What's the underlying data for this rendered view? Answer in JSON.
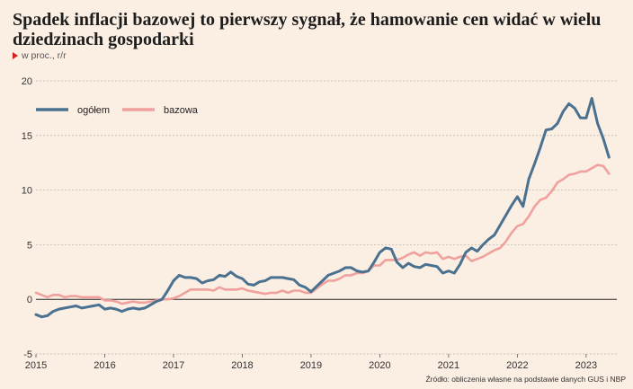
{
  "header": {
    "title": "Spadek inflacji bazowej to pierwszy sygnał, że hamowanie cen widać w wielu dziedzinach gospodarki",
    "subtitle": "w proc., r/r"
  },
  "source": "Źródło: obliczenia własne na podstawie danych GUS i NBP",
  "colors": {
    "ogolem": "#4a7190",
    "bazowa": "#f0a19d",
    "grid": "#bdb5ad",
    "zero": "#222222"
  },
  "chart_data": {
    "type": "line",
    "title": "Spadek inflacji bazowej to pierwszy sygnał, że hamowanie cen widać w wielu dziedzinach gospodarki",
    "ylabel": "w proc., r/r",
    "xlim": [
      2015.0,
      2023.42
    ],
    "ylim": [
      -5,
      20
    ],
    "yticks": [
      -5,
      0,
      5,
      10,
      15,
      20
    ],
    "xticks": [
      "2015",
      "2016",
      "2017",
      "2018",
      "2019",
      "2020",
      "2021",
      "2022",
      "2023"
    ],
    "xtick_values": [
      2015,
      2016,
      2017,
      2018,
      2019,
      2020,
      2021,
      2022,
      2023
    ],
    "legend": [
      "ogółem",
      "bazowa"
    ],
    "legend_position": "top-left",
    "x_start": 2015.0,
    "x_step": 0.08333,
    "series": [
      {
        "name": "ogółem",
        "values": [
          -1.4,
          -1.6,
          -1.5,
          -1.1,
          -0.9,
          -0.8,
          -0.7,
          -0.6,
          -0.8,
          -0.7,
          -0.6,
          -0.5,
          -0.9,
          -0.8,
          -0.9,
          -1.1,
          -0.9,
          -0.8,
          -0.9,
          -0.8,
          -0.5,
          -0.2,
          0.0,
          0.8,
          1.7,
          2.2,
          2.0,
          2.0,
          1.9,
          1.5,
          1.7,
          1.8,
          2.2,
          2.1,
          2.5,
          2.1,
          1.9,
          1.4,
          1.3,
          1.6,
          1.7,
          2.0,
          2.0,
          2.0,
          1.9,
          1.8,
          1.3,
          1.1,
          0.7,
          1.2,
          1.7,
          2.2,
          2.4,
          2.6,
          2.9,
          2.9,
          2.6,
          2.5,
          2.6,
          3.4,
          4.3,
          4.7,
          4.6,
          3.4,
          2.9,
          3.3,
          3.0,
          2.9,
          3.2,
          3.1,
          3.0,
          2.4,
          2.6,
          2.4,
          3.2,
          4.3,
          4.7,
          4.4,
          5.0,
          5.5,
          5.9,
          6.8,
          7.7,
          8.6,
          9.4,
          8.5,
          11.0,
          12.4,
          13.9,
          15.5,
          15.6,
          16.1,
          17.2,
          17.9,
          17.5,
          16.6,
          16.6,
          18.4,
          16.1,
          14.7,
          13.0
        ]
      },
      {
        "name": "bazowa",
        "values": [
          0.6,
          0.4,
          0.2,
          0.4,
          0.4,
          0.2,
          0.3,
          0.3,
          0.2,
          0.2,
          0.2,
          0.2,
          -0.1,
          -0.1,
          -0.2,
          -0.4,
          -0.3,
          -0.2,
          -0.3,
          -0.3,
          -0.2,
          -0.1,
          0.0,
          0.0,
          0.1,
          0.3,
          0.6,
          0.9,
          0.9,
          0.9,
          0.9,
          0.8,
          1.1,
          0.9,
          0.9,
          0.9,
          1.0,
          0.8,
          0.7,
          0.6,
          0.5,
          0.6,
          0.6,
          0.8,
          0.6,
          0.8,
          0.8,
          0.6,
          0.6,
          1.0,
          1.4,
          1.7,
          1.7,
          1.9,
          2.2,
          2.2,
          2.4,
          2.4,
          2.6,
          3.1,
          3.1,
          3.6,
          3.6,
          3.6,
          3.8,
          4.1,
          4.3,
          4.0,
          4.3,
          4.2,
          4.3,
          3.7,
          3.9,
          3.7,
          3.9,
          4.0,
          3.5,
          3.7,
          3.9,
          4.2,
          4.5,
          4.7,
          5.3,
          6.1,
          6.7,
          6.9,
          7.6,
          8.5,
          9.1,
          9.3,
          9.9,
          10.7,
          11.0,
          11.4,
          11.5,
          11.7,
          11.7,
          12.0,
          12.3,
          12.2,
          11.5
        ]
      }
    ]
  }
}
